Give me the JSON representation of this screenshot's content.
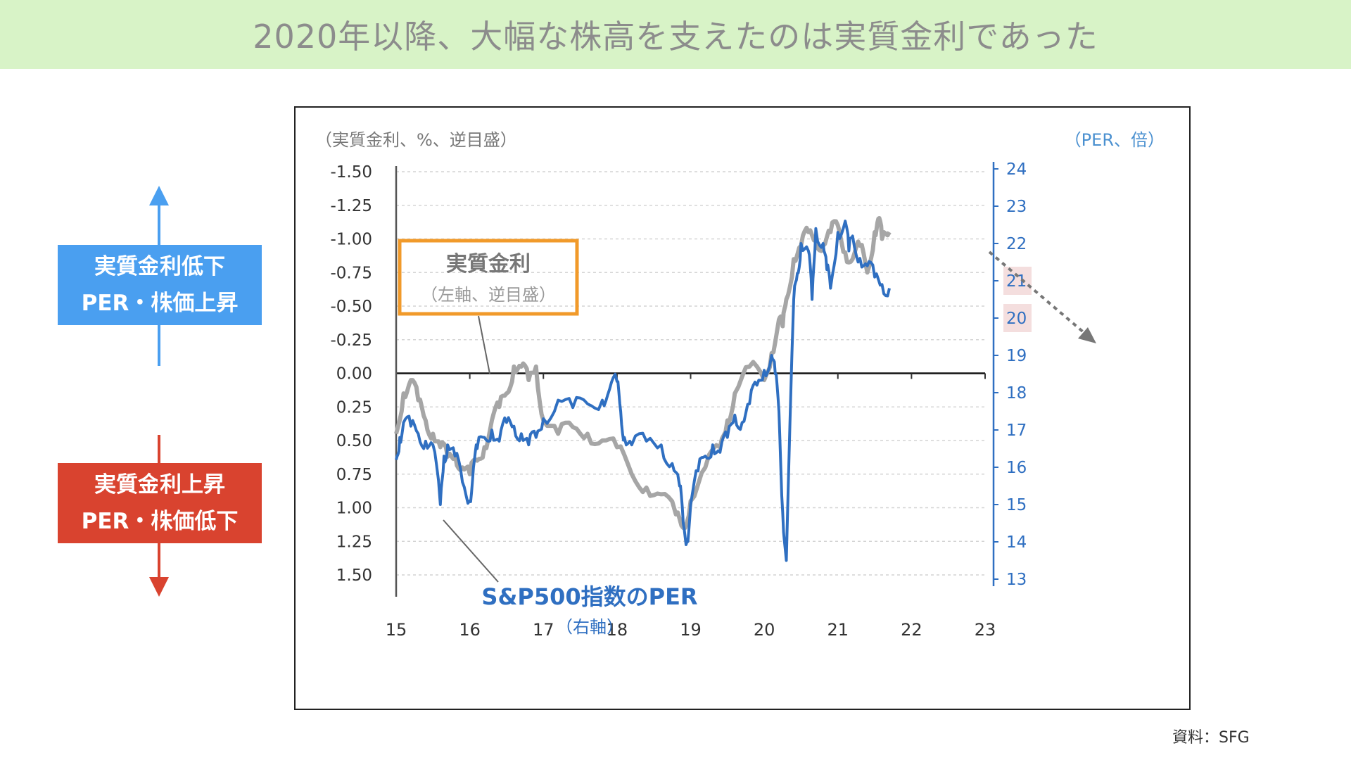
{
  "title": "2020年以降、大幅な株高を支えたのは実質金利であった",
  "legend_boxes": {
    "down": {
      "line1": "実質金利低下",
      "line2": "PER・株価上昇",
      "color": "#4a9ff0"
    },
    "up": {
      "line1": "実質金利上昇",
      "line2": "PER・株価低下",
      "color": "#d9432f"
    }
  },
  "source": "資料：SFG",
  "chart_data": {
    "type": "line",
    "left_axis_label": "（実質金利、%、逆目盛）",
    "right_axis_label": "（PER、倍）",
    "x_ticks": [
      "15",
      "16",
      "17",
      "18",
      "19",
      "20",
      "21",
      "22",
      "23"
    ],
    "xlim": [
      15,
      23
    ],
    "left_ticks": [
      "-1.50",
      "-1.25",
      "-1.00",
      "-0.75",
      "-0.50",
      "-0.25",
      "0.00",
      "0.25",
      "0.50",
      "0.75",
      "1.00",
      "1.25",
      "1.50"
    ],
    "left_ylim": [
      1.5,
      -1.5
    ],
    "left_inverted": true,
    "right_ticks": [
      "24",
      "23",
      "22",
      "21",
      "20",
      "19",
      "18",
      "17",
      "16",
      "15",
      "14",
      "13"
    ],
    "right_ylim": [
      13,
      24
    ],
    "highlight_right_ticks": [
      "21",
      "20"
    ],
    "series": [
      {
        "name": "実質金利",
        "sub": "（左軸、逆目盛）",
        "axis": "left",
        "color": "#a6a6a6",
        "x": [
          15.0,
          15.1,
          15.2,
          15.3,
          15.4,
          15.5,
          15.6,
          15.7,
          15.8,
          15.9,
          16.0,
          16.1,
          16.2,
          16.3,
          16.4,
          16.5,
          16.6,
          16.7,
          16.8,
          16.9,
          17.0,
          17.2,
          17.4,
          17.6,
          17.8,
          18.0,
          18.2,
          18.4,
          18.6,
          18.8,
          18.9,
          19.0,
          19.2,
          19.4,
          19.5,
          19.6,
          19.8,
          20.0,
          20.1,
          20.2,
          20.25,
          20.3,
          20.4,
          20.5,
          20.6,
          20.7,
          20.8,
          20.9,
          21.0,
          21.1,
          21.2,
          21.3,
          21.4,
          21.5,
          21.55,
          21.6,
          21.7
        ],
        "values": [
          0.45,
          0.15,
          0.05,
          0.2,
          0.35,
          0.45,
          0.55,
          0.62,
          0.6,
          0.7,
          0.75,
          0.65,
          0.55,
          0.35,
          0.25,
          0.15,
          -0.05,
          -0.05,
          0.05,
          -0.05,
          0.35,
          0.45,
          0.4,
          0.45,
          0.5,
          0.55,
          0.75,
          0.85,
          0.9,
          1.05,
          1.15,
          0.95,
          0.7,
          0.55,
          0.35,
          0.15,
          -0.05,
          0.05,
          -0.15,
          -0.4,
          -0.35,
          -0.55,
          -0.85,
          -0.95,
          -1.05,
          -1.0,
          -0.95,
          -1.05,
          -1.1,
          -0.9,
          -0.85,
          -0.95,
          -0.75,
          -1.05,
          -1.15,
          -1.0,
          -1.05
        ]
      },
      {
        "name": "S&P500指数のPER",
        "sub": "（右軸）",
        "axis": "right",
        "color": "#2f6fc1",
        "x": [
          15.0,
          15.05,
          15.1,
          15.2,
          15.3,
          15.4,
          15.5,
          15.6,
          15.65,
          15.7,
          15.8,
          15.9,
          16.0,
          16.05,
          16.1,
          16.2,
          16.3,
          16.4,
          16.5,
          16.6,
          16.7,
          16.8,
          16.9,
          17.0,
          17.2,
          17.4,
          17.6,
          17.8,
          17.9,
          18.0,
          18.05,
          18.1,
          18.2,
          18.4,
          18.6,
          18.75,
          18.85,
          18.9,
          18.95,
          19.0,
          19.1,
          19.2,
          19.3,
          19.4,
          19.5,
          19.6,
          19.7,
          19.8,
          19.9,
          20.0,
          20.1,
          20.15,
          20.2,
          20.25,
          20.3,
          20.4,
          20.45,
          20.5,
          20.6,
          20.65,
          20.7,
          20.8,
          20.85,
          20.9,
          21.0,
          21.1,
          21.15,
          21.2,
          21.3,
          21.4,
          21.5,
          21.6,
          21.7
        ],
        "values": [
          16.2,
          16.8,
          17.2,
          17.1,
          16.9,
          16.7,
          16.6,
          15.0,
          16.3,
          16.6,
          16.3,
          15.6,
          15.1,
          16.0,
          16.5,
          16.8,
          17.0,
          16.7,
          17.2,
          17.1,
          16.9,
          16.6,
          16.8,
          17.3,
          17.8,
          17.6,
          17.7,
          17.8,
          18.1,
          18.3,
          17.5,
          16.8,
          16.6,
          16.7,
          16.6,
          16.1,
          15.5,
          14.5,
          14.0,
          15.0,
          15.9,
          16.3,
          16.6,
          16.4,
          16.8,
          17.4,
          17.2,
          17.7,
          18.2,
          18.6,
          19.0,
          18.5,
          17.5,
          14.8,
          13.5,
          20.5,
          21.2,
          22.0,
          21.8,
          20.5,
          22.4,
          22.0,
          21.3,
          20.8,
          22.3,
          22.6,
          21.8,
          22.2,
          21.6,
          21.4,
          21.1,
          20.9,
          20.8
        ]
      }
    ],
    "forecast_arrow_note": "dashed arrow projecting real rate lower into 2022",
    "grid": "horizontal dashed"
  }
}
